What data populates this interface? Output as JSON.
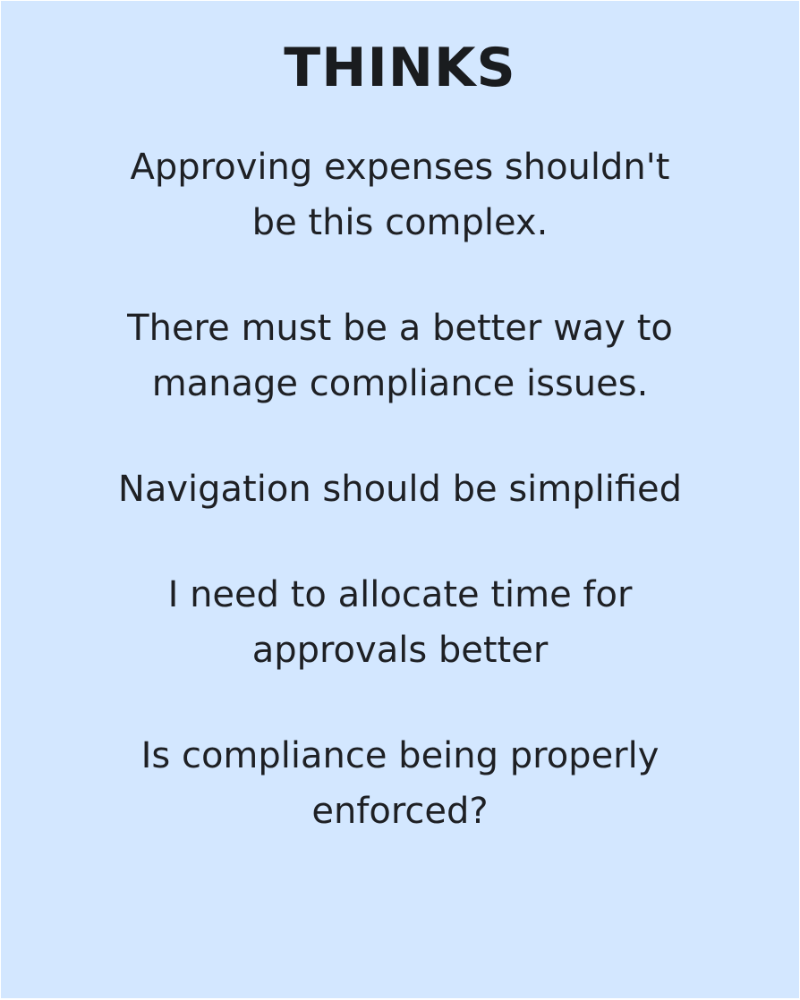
{
  "card": {
    "title": "THINKS",
    "thoughts": [
      {
        "lines": [
          "Approving expenses shouldn't",
          "be this complex."
        ]
      },
      {
        "lines": [
          "There must be a better way to",
          "manage compliance issues."
        ]
      },
      {
        "lines": [
          "Navigation should be simplified"
        ]
      },
      {
        "lines": [
          "I need to allocate time for",
          "approvals better"
        ]
      },
      {
        "lines": [
          "Is compliance being properly",
          "enforced?"
        ]
      }
    ]
  },
  "colors": {
    "background": "#d3e7ff",
    "text": "#1e2024"
  }
}
